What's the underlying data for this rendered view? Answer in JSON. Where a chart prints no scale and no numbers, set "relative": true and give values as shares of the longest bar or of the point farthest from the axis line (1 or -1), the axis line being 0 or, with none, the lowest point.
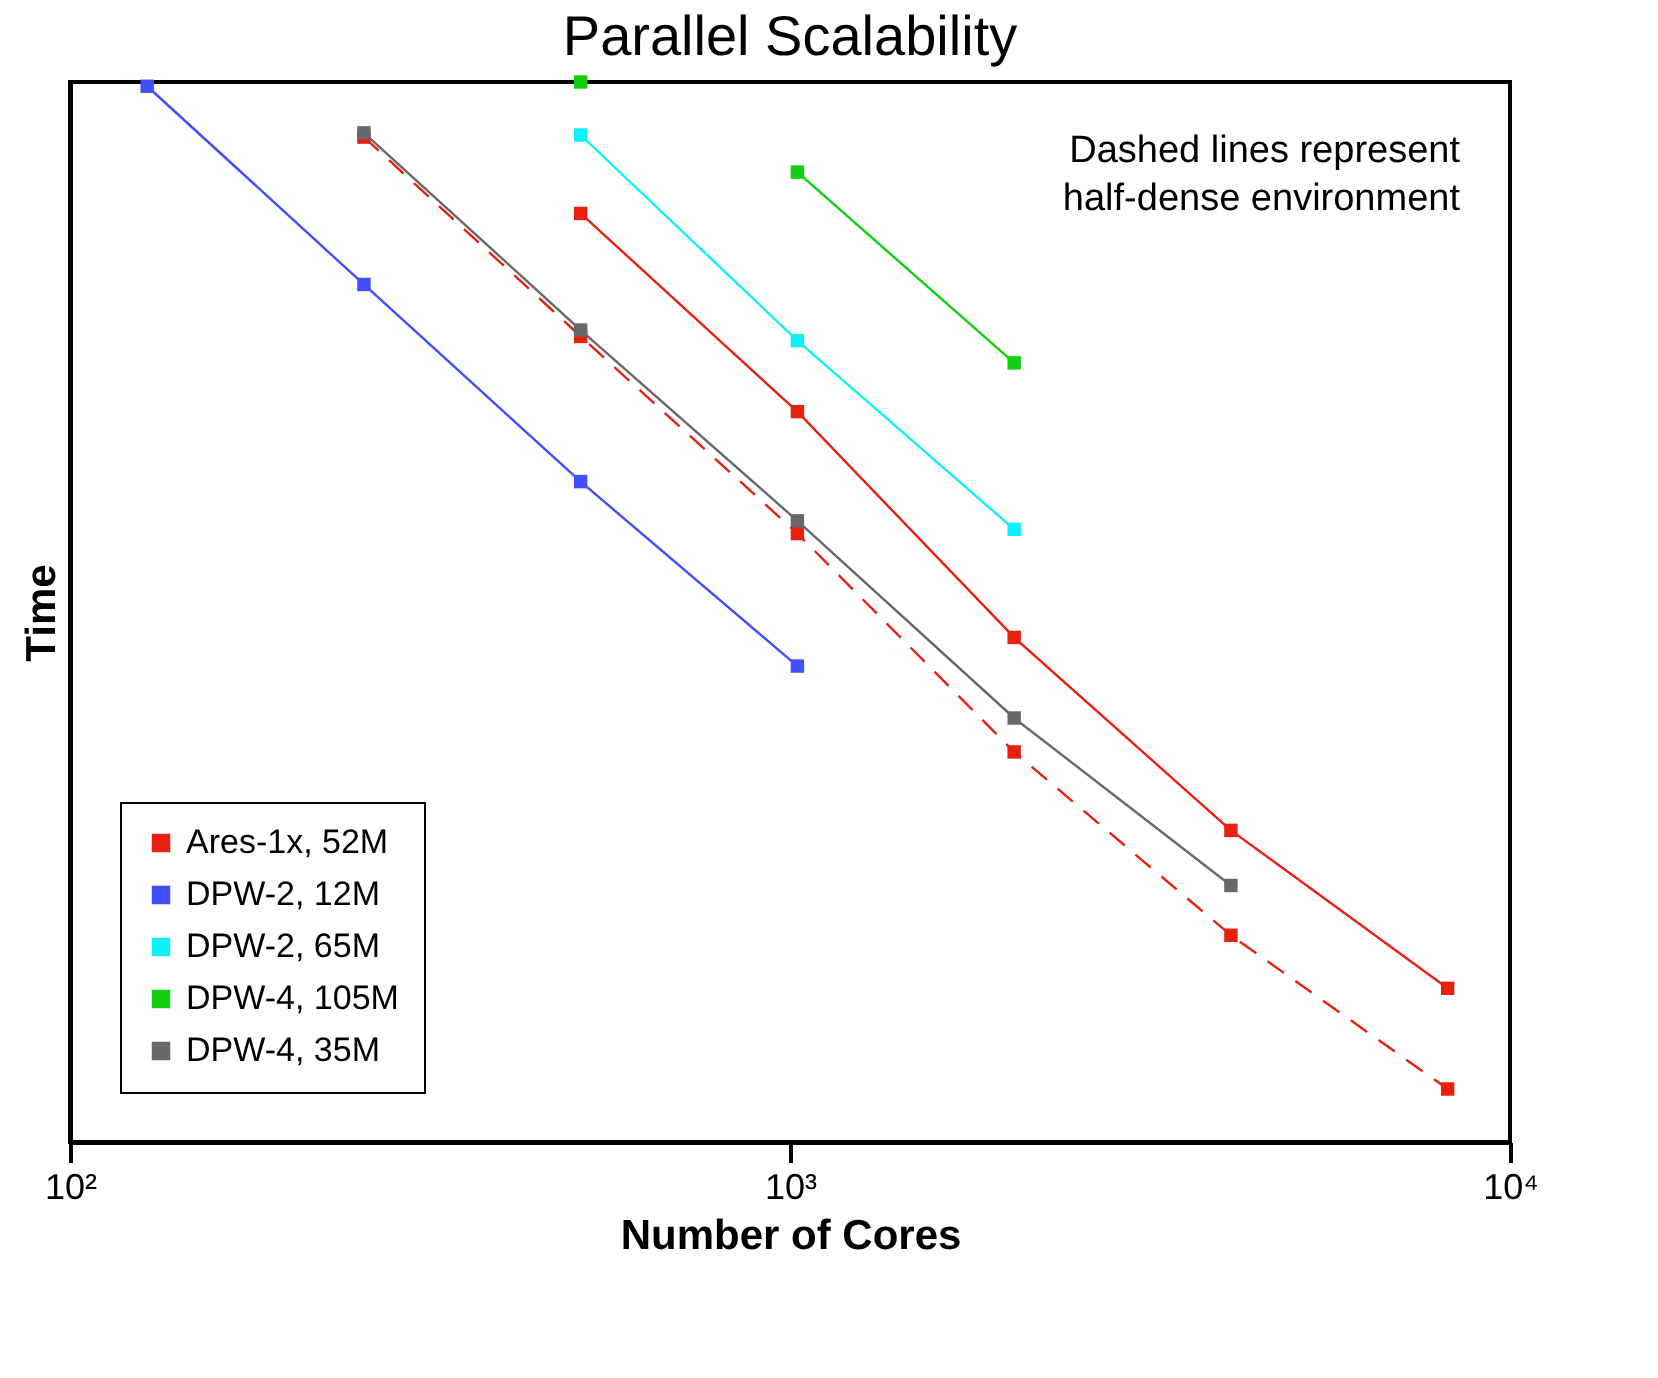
{
  "chart_data": {
    "type": "line",
    "title": "Parallel Scalability",
    "xlabel": "Number of Cores",
    "ylabel": "Time",
    "log": "x",
    "relative": true,
    "xlim": [
      100,
      10000
    ],
    "xticks": [
      {
        "value": 100,
        "label": "10²"
      },
      {
        "value": 1000,
        "label": "10³"
      },
      {
        "value": 10000,
        "label": "10⁴"
      }
    ],
    "grid": false,
    "legend": "bottom left",
    "marker": "square",
    "line_style": "solid",
    "annotations": [
      "Dashed lines represent\nhalf-dense environment"
    ],
    "series": [
      {
        "name": "Ares-1x, 52M",
        "color": "#e82010",
        "x": [
          512,
          1024,
          2048,
          4096,
          8192
        ],
        "values": [
          0.876,
          0.689,
          0.476,
          0.294,
          0.145
        ]
      },
      {
        "name": "DPW-2, 12M",
        "color": "#4050f8",
        "x": [
          128,
          256,
          512,
          1024
        ],
        "values": [
          0.996,
          0.809,
          0.623,
          0.449
        ]
      },
      {
        "name": "DPW-2, 65M",
        "color": "#10f0f8",
        "x": [
          512,
          1024,
          2048
        ],
        "values": [
          0.95,
          0.756,
          0.578
        ]
      },
      {
        "name": "DPW-4, 105M",
        "color": "#10d010",
        "x": [
          1024,
          2048
        ],
        "values": [
          0.915,
          0.735
        ]
      },
      {
        "color": "#e82010",
        "line_style": "dashed",
        "x": [
          256,
          512,
          1024,
          2048,
          4096,
          8192
        ],
        "values": [
          0.948,
          0.76,
          0.574,
          0.368,
          0.195,
          0.05
        ]
      },
      {
        "name": "DPW-4, 35M",
        "color": "#686868",
        "x": [
          256,
          512,
          1024,
          2048,
          4096
        ],
        "values": [
          0.952,
          0.766,
          0.586,
          0.4,
          0.242
        ]
      },
      {
        "type": "scatter",
        "color": "#10d010",
        "x": [
          512
        ],
        "values": [
          1
        ]
      }
    ]
  }
}
